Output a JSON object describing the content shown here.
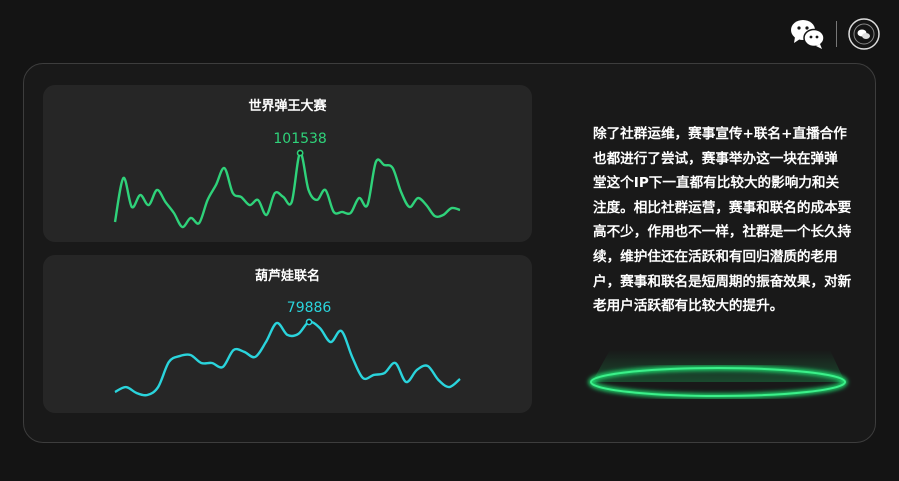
{
  "header": {
    "icons": [
      "wechat-icon",
      "brand-badge-logo"
    ]
  },
  "description": {
    "lines": [
      "除了社群运维，赛事宣传+联名+直播合作",
      "也都进行了尝试，赛事举办这一块在弹弹",
      "堂这个IP下一直都有比较大的影响力和关",
      "注度。相比社群运营，赛事和联名的成本要",
      "高不少，作用也不一样，社群是一个长久持",
      "续，维护住还在活跃和有回归潜质的老用",
      "户，赛事和联名是短周期的振奋效果，对新",
      "老用户活跃都有比较大的提升。"
    ]
  },
  "chart_data": [
    {
      "type": "line",
      "title": "世界弹王大赛",
      "color": "#2fd27a",
      "peak_label": "101538",
      "grid": false,
      "axes": false,
      "values": [
        21000,
        72400,
        38500,
        52500,
        40800,
        58400,
        44300,
        31500,
        15200,
        25700,
        19800,
        46700,
        64200,
        84000,
        54800,
        50200,
        40800,
        46700,
        29200,
        54800,
        50200,
        44300,
        101538,
        58400,
        46700,
        58400,
        32700,
        32700,
        31500,
        49000,
        40800,
        91000,
        87500,
        84000,
        56000,
        38500,
        49000,
        40800,
        28000,
        29200,
        37300,
        35000
      ]
    },
    {
      "type": "line",
      "title": "葫芦娃联名",
      "color": "#2ad4dc",
      "peak_label": "79886",
      "grid": false,
      "axes": false,
      "values": [
        18400,
        22800,
        17600,
        15800,
        22800,
        44800,
        50000,
        50900,
        43900,
        43900,
        40400,
        55300,
        53600,
        49200,
        62300,
        79000,
        68500,
        69400,
        79886,
        74600,
        62300,
        72000,
        49200,
        30700,
        33400,
        35100,
        43900,
        27200,
        37800,
        41300,
        29000,
        22800,
        29900
      ]
    }
  ]
}
